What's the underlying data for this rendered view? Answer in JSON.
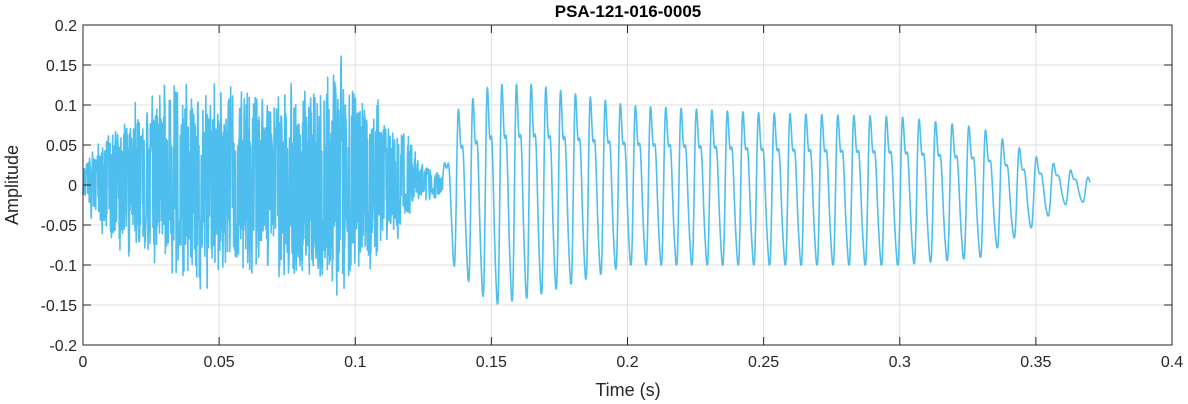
{
  "chart_data": {
    "type": "line",
    "title": "PSA-121-016-0005",
    "xlabel": "Time (s)",
    "ylabel": "Amplitude",
    "xlim": [
      0,
      0.4
    ],
    "ylim": [
      -0.2,
      0.2
    ],
    "xticks": [
      0,
      0.05,
      0.1,
      0.15,
      0.2,
      0.25,
      0.3,
      0.35,
      0.4
    ],
    "xtick_labels": [
      "0",
      "0.05",
      "0.1",
      "0.15",
      "0.2",
      "0.25",
      "0.3",
      "0.35",
      "0.4"
    ],
    "yticks": [
      -0.2,
      -0.15,
      -0.1,
      -0.05,
      0,
      0.05,
      0.1,
      0.15,
      0.2
    ],
    "ytick_labels": [
      "-0.2",
      "-0.15",
      "-0.1",
      "-0.05",
      "0",
      "0.05",
      "0.1",
      "0.15",
      "0.2"
    ],
    "grid": true,
    "series": [
      {
        "color": "#4DBEEE",
        "x": [
          0,
          0.012,
          0.025,
          0.04,
          0.06,
          0.08,
          0.095,
          0.105,
          0.118,
          0.124,
          0.132,
          0.136,
          0.15,
          0.165,
          0.2,
          0.25,
          0.3,
          0.33,
          0.35,
          0.36,
          0.37
        ],
        "y_envelope_max": [
          0.03,
          0.1,
          0.12,
          0.14,
          0.13,
          0.14,
          0.17,
          0.13,
          0.08,
          0.03,
          0.015,
          0.1,
          0.14,
          0.14,
          0.11,
          0.1,
          0.095,
          0.08,
          0.04,
          0.025,
          0.01
        ],
        "y_envelope_min": [
          -0.03,
          -0.09,
          -0.1,
          -0.14,
          -0.12,
          -0.14,
          -0.16,
          -0.11,
          -0.06,
          -0.02,
          -0.015,
          -0.1,
          -0.15,
          -0.14,
          -0.1,
          -0.1,
          -0.1,
          -0.09,
          -0.05,
          -0.025,
          -0.02
        ]
      }
    ]
  }
}
